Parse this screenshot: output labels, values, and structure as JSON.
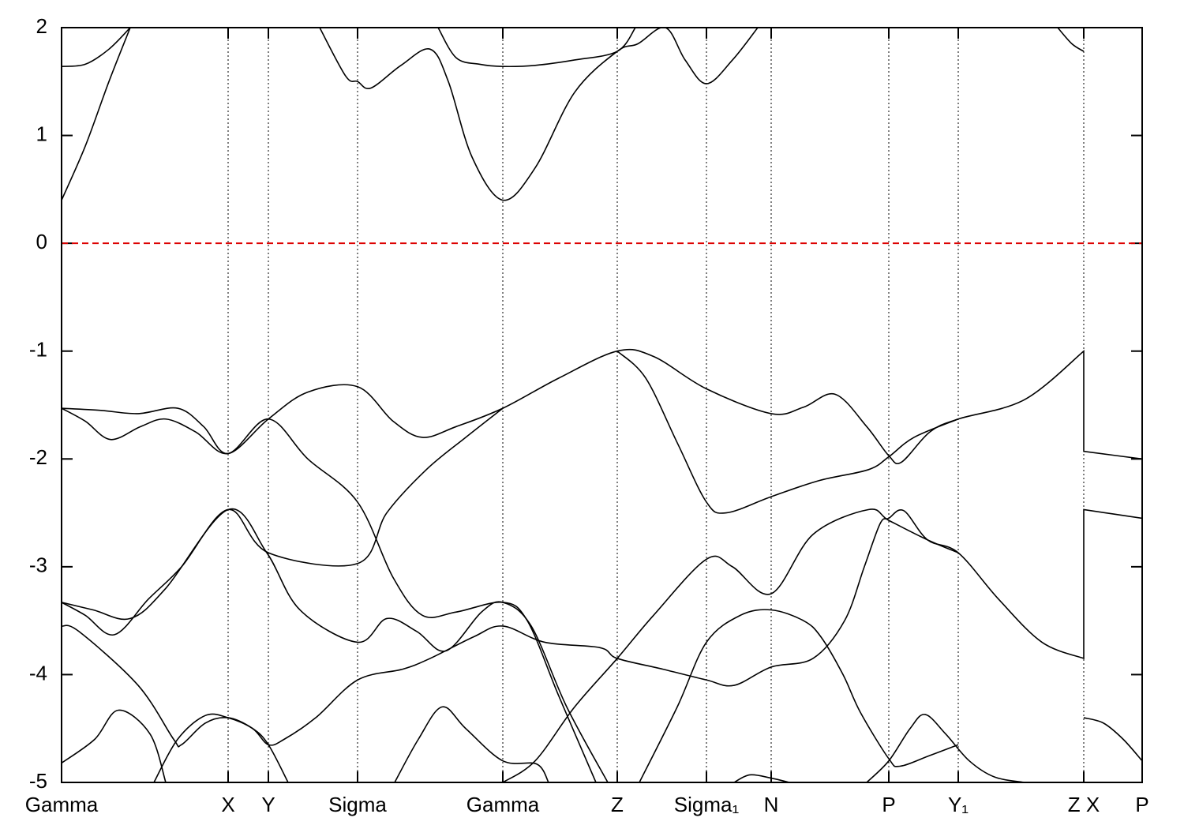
{
  "chart_data": {
    "type": "line",
    "xlim": [
      0,
      13.69
    ],
    "ylim": [
      -5,
      2
    ],
    "yticks": [
      -5,
      -4,
      -3,
      -2,
      -1,
      0,
      1,
      2
    ],
    "xticks": [
      {
        "value": 0,
        "label": "Gamma"
      },
      {
        "value": 2.11,
        "label": "X"
      },
      {
        "value": 2.62,
        "label": "Y"
      },
      {
        "value": 3.75,
        "label": "Sigma"
      },
      {
        "value": 5.59,
        "label": "Gamma"
      },
      {
        "value": 7.04,
        "label": "Z"
      },
      {
        "value": 8.17,
        "label": "Sigma₁"
      },
      {
        "value": 8.99,
        "label": "N"
      },
      {
        "value": 10.48,
        "label": "P"
      },
      {
        "value": 11.36,
        "label": "Y₁"
      },
      {
        "value": 12.95,
        "label": "Z X"
      },
      {
        "value": 13.69,
        "label": "P"
      }
    ],
    "grid": "x",
    "hline": {
      "y": 0,
      "color": "#dd0000"
    },
    "series": [
      {
        "color": "#000000",
        "x": [
          0,
          0.3,
          0.6,
          0.87
        ],
        "values": [
          0.4,
          0.9,
          1.5,
          2.0
        ]
      },
      {
        "color": "#000000",
        "x": [
          0,
          0.3,
          0.6,
          0.87
        ],
        "values": [
          1.64,
          1.66,
          1.8,
          2.0
        ]
      },
      {
        "color": "#000000",
        "x": [
          3.27,
          3.6,
          3.75,
          3.92,
          4.3,
          4.67,
          4.9,
          5.2,
          5.59,
          6.0,
          6.5,
          7.04,
          7.3,
          7.65,
          7.9,
          8.17,
          8.5,
          8.82
        ],
        "values": [
          2,
          1.55,
          1.5,
          1.44,
          1.65,
          1.8,
          1.5,
          0.8,
          0.4,
          0.7,
          1.4,
          1.78,
          1.85,
          2.0,
          1.7,
          1.48,
          1.7,
          2.0
        ]
      },
      {
        "color": "#000000",
        "x": [
          4.77,
          5.0,
          5.3,
          5.59,
          6.0,
          6.5,
          7.04,
          7.27
        ],
        "values": [
          2,
          1.72,
          1.66,
          1.64,
          1.65,
          1.7,
          1.78,
          2.0
        ]
      },
      {
        "color": "#000000",
        "x": [
          12.62,
          12.8,
          12.95
        ],
        "values": [
          2,
          1.85,
          1.78
        ]
      },
      {
        "color": "#000000",
        "x": [
          0,
          0.5,
          0.97,
          1.47,
          1.8,
          2.11,
          2.62,
          3.12,
          3.75,
          4.2,
          4.57,
          5.0,
          5.59,
          6.3,
          7.04,
          7.5,
          8.17,
          8.99,
          9.4,
          9.8,
          10.2,
          10.48,
          10.64,
          11.0,
          11.36,
          12.2,
          12.95,
          12.95,
          13.69
        ],
        "values": [
          -1.53,
          -1.55,
          -1.58,
          -1.53,
          -1.7,
          -1.95,
          -1.63,
          -1.38,
          -1.33,
          -1.65,
          -1.8,
          -1.7,
          -1.53,
          -1.25,
          -1.0,
          -1.05,
          -1.35,
          -1.58,
          -1.52,
          -1.4,
          -1.7,
          -1.97,
          -2.03,
          -1.75,
          -1.63,
          -1.45,
          -1.0,
          -1.93,
          -2.0
        ]
      },
      {
        "color": "#000000",
        "x": [
          0,
          0.3,
          0.62,
          1.0,
          1.32,
          1.7,
          2.11,
          2.62,
          3.12,
          3.75,
          4.2,
          4.57,
          5.0,
          5.59,
          5.9,
          6.3,
          6.77
        ],
        "values": [
          -1.53,
          -1.65,
          -1.82,
          -1.7,
          -1.63,
          -1.75,
          -1.95,
          -1.63,
          -2.0,
          -2.4,
          -3.1,
          -3.45,
          -3.42,
          -3.33,
          -3.5,
          -4.2,
          -5.0
        ]
      },
      {
        "color": "#000000",
        "x": [
          0,
          0.3,
          0.67,
          1.1,
          1.52,
          2.11,
          2.62,
          3.75,
          4.12,
          4.62,
          5.12,
          5.59
        ],
        "values": [
          -3.33,
          -3.45,
          -3.63,
          -3.3,
          -3.0,
          -2.47,
          -2.87,
          -2.97,
          -2.5,
          -2.1,
          -1.8,
          -1.53
        ]
      },
      {
        "color": "#000000",
        "x": [
          0,
          0.4,
          0.87,
          1.32,
          2.11,
          2.6,
          3.02,
          3.75,
          4.12,
          4.5,
          4.87,
          5.32,
          5.59,
          5.95,
          6.4,
          6.92
        ],
        "values": [
          -3.33,
          -3.4,
          -3.48,
          -3.2,
          -2.47,
          -2.87,
          -3.4,
          -3.7,
          -3.48,
          -3.6,
          -3.78,
          -3.42,
          -3.33,
          -3.55,
          -4.3,
          -5.0
        ]
      },
      {
        "color": "#000000",
        "x": [
          0,
          0.22,
          0.97,
          1.42,
          1.52,
          1.82,
          2.11,
          2.42,
          2.62,
          2.82,
          3.22,
          3.75,
          4.32,
          4.67,
          5.22,
          5.59,
          6.12,
          6.82,
          7.04,
          7.62,
          8.17,
          8.52,
          8.99,
          9.52,
          9.92,
          10.17,
          10.37,
          10.48,
          10.67,
          10.97,
          11.36,
          11.87,
          12.42,
          12.95,
          12.95,
          13.69
        ],
        "values": [
          -3.55,
          -3.6,
          -4.1,
          -4.6,
          -4.65,
          -4.45,
          -4.4,
          -4.5,
          -4.65,
          -4.6,
          -4.4,
          -4.05,
          -3.95,
          -3.85,
          -3.65,
          -3.55,
          -3.7,
          -3.75,
          -3.85,
          -3.95,
          -4.05,
          -4.1,
          -3.93,
          -3.85,
          -3.5,
          -3.0,
          -2.6,
          -2.55,
          -2.48,
          -2.75,
          -2.87,
          -3.3,
          -3.7,
          -3.85,
          -2.47,
          -2.55
        ]
      },
      {
        "color": "#000000",
        "x": [
          0,
          0.42,
          0.72,
          1.12,
          1.32
        ],
        "values": [
          -4.82,
          -4.6,
          -4.33,
          -4.55,
          -5.0
        ]
      },
      {
        "color": "#000000",
        "x": [
          1.17,
          1.47,
          1.82,
          2.11,
          2.42,
          2.62,
          2.87
        ],
        "values": [
          -5,
          -4.6,
          -4.38,
          -4.4,
          -4.5,
          -4.65,
          -5
        ]
      },
      {
        "color": "#000000",
        "x": [
          4.22,
          4.52,
          4.82,
          5.12,
          5.59,
          6.02,
          6.17
        ],
        "values": [
          -5,
          -4.6,
          -4.3,
          -4.5,
          -4.8,
          -4.83,
          -5
        ]
      },
      {
        "color": "#000000",
        "x": [
          5.59,
          6.0,
          6.5,
          7.04,
          7.5,
          8.17,
          8.5,
          8.99,
          9.52,
          10.22,
          10.48,
          10.97,
          11.36
        ],
        "values": [
          -5,
          -4.8,
          -4.3,
          -3.85,
          -3.45,
          -2.93,
          -3.0,
          -3.25,
          -2.7,
          -2.47,
          -2.57,
          -2.75,
          -2.87
        ]
      },
      {
        "color": "#000000",
        "x": [
          7.32,
          7.8,
          8.17,
          8.6,
          8.99,
          9.4,
          9.62,
          9.9,
          10.12,
          10.48,
          10.62,
          11.0,
          11.36
        ],
        "values": [
          -5,
          -4.3,
          -3.7,
          -3.45,
          -3.4,
          -3.5,
          -3.65,
          -4.0,
          -4.35,
          -4.78,
          -4.85,
          -4.75,
          -4.65
        ]
      },
      {
        "color": "#000000",
        "x": [
          10.2,
          10.48,
          10.75,
          10.94,
          11.2,
          11.5,
          11.82,
          12.2
        ],
        "values": [
          -5,
          -4.8,
          -4.5,
          -4.37,
          -4.55,
          -4.8,
          -4.95,
          -5.0
        ]
      },
      {
        "color": "#000000",
        "x": [
          8.52,
          8.72,
          8.99,
          9.22
        ],
        "values": [
          -5,
          -4.93,
          -4.96,
          -5
        ]
      },
      {
        "color": "#000000",
        "x": [
          12.95,
          13.2,
          13.45,
          13.69
        ],
        "values": [
          -4.4,
          -4.45,
          -4.6,
          -4.8
        ]
      },
      {
        "color": "#000000",
        "x": [
          7.04,
          7.4,
          7.8,
          8.17,
          8.42,
          8.99,
          9.6,
          10.22,
          10.48,
          10.8,
          11.36
        ],
        "values": [
          -1.0,
          -1.25,
          -1.85,
          -2.4,
          -2.5,
          -2.35,
          -2.2,
          -2.1,
          -1.98,
          -1.8,
          -1.63
        ]
      }
    ]
  }
}
